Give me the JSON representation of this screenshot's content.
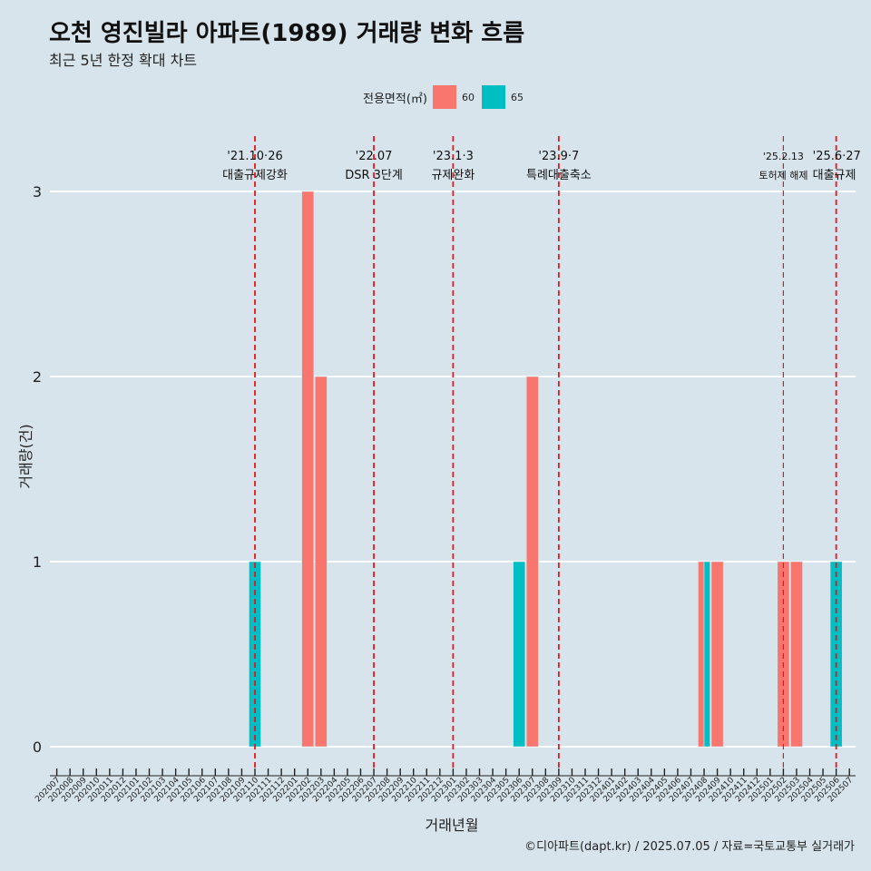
{
  "title": "오천 영진빌라 아파트(1989) 거래량 변화 흐름",
  "subtitle": "최근 5년 한정 확대 차트",
  "caption": "©디아파트(dapt.kr) / 2025.07.05 / 자료=국토교통부 실거래가",
  "legend": {
    "title": "전용면적(㎡)",
    "items": [
      {
        "label": "60",
        "color": "#f8766d"
      },
      {
        "label": "65",
        "color": "#00bfc4"
      }
    ]
  },
  "chart_data": {
    "type": "bar",
    "xlabel": "거래년월",
    "ylabel": "거래량(건)",
    "ylim": [
      0,
      3
    ],
    "yticks": [
      0,
      1,
      2,
      3
    ],
    "grid": true,
    "legend_position": "top",
    "categories": [
      "202007",
      "202008",
      "202009",
      "202010",
      "202011",
      "202012",
      "202101",
      "202102",
      "202103",
      "202104",
      "202105",
      "202106",
      "202107",
      "202108",
      "202109",
      "202110",
      "202111",
      "202112",
      "202201",
      "202202",
      "202203",
      "202204",
      "202205",
      "202206",
      "202207",
      "202208",
      "202209",
      "202210",
      "202211",
      "202212",
      "202301",
      "202302",
      "202303",
      "202304",
      "202305",
      "202306",
      "202307",
      "202308",
      "202309",
      "202310",
      "202311",
      "202312",
      "202401",
      "202402",
      "202403",
      "202404",
      "202405",
      "202406",
      "202407",
      "202408",
      "202409",
      "202410",
      "202411",
      "202412",
      "202501",
      "202502",
      "202503",
      "202504",
      "202505",
      "202506",
      "202507"
    ],
    "series": [
      {
        "name": "60",
        "color": "#f8766d",
        "points": [
          {
            "x": "202202",
            "y": 3
          },
          {
            "x": "202203",
            "y": 2
          },
          {
            "x": "202307",
            "y": 2
          },
          {
            "x": "202408",
            "y": 1
          },
          {
            "x": "202409",
            "y": 1
          },
          {
            "x": "202502",
            "y": 1
          },
          {
            "x": "202503",
            "y": 1
          }
        ]
      },
      {
        "name": "65",
        "color": "#00bfc4",
        "points": [
          {
            "x": "202110",
            "y": 1
          },
          {
            "x": "202306",
            "y": 1
          },
          {
            "x": "202408",
            "y": 1
          },
          {
            "x": "202506",
            "y": 1
          }
        ]
      }
    ],
    "annotations": [
      {
        "x": "202110",
        "date": "'21.10·26",
        "text": "대출규제강화"
      },
      {
        "x": "202207",
        "date": "'22.07",
        "text": "DSR 3단계"
      },
      {
        "x": "202301",
        "date": "'23.1·3",
        "text": "규제완화"
      },
      {
        "x": "202309",
        "date": "'23.9·7",
        "text": "특례대출축소"
      },
      {
        "x": "202502",
        "date": "'25.2.13",
        "text": "토허제 해제"
      },
      {
        "x": "202506",
        "date": "'25.6·27",
        "text": "대출규제"
      }
    ]
  }
}
